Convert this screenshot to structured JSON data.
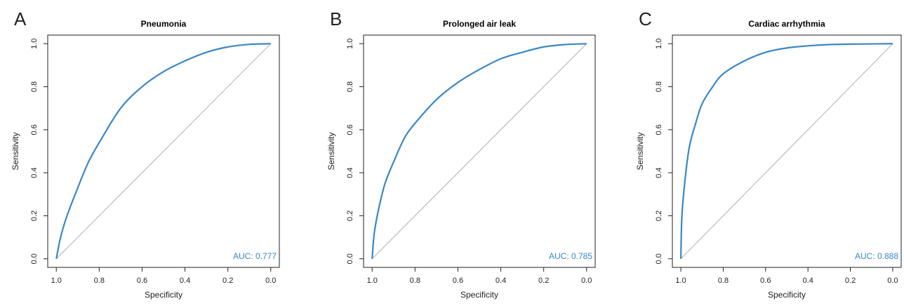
{
  "colors": {
    "curve": "#3a87c6",
    "diagonal": "#b0b0b0",
    "axis": "#222222",
    "auc_text": "#3a87c6"
  },
  "chart_data": [
    {
      "type": "line",
      "panel_label": "A",
      "title": "Pneumonia",
      "xlabel": "Specificity",
      "ylabel": "Sensitivity",
      "xlim": [
        1.0,
        0.0
      ],
      "ylim": [
        0.0,
        1.0
      ],
      "x_reversed": true,
      "x_ticks": [
        "1.0",
        "0.8",
        "0.6",
        "0.4",
        "0.2",
        "0.0"
      ],
      "y_ticks": [
        "0.0",
        "0.2",
        "0.4",
        "0.6",
        "0.8",
        "1.0"
      ],
      "auc_label": "AUC: 0.777",
      "series": [
        {
          "specificity": [
            1.0,
            0.98,
            0.95,
            0.9,
            0.85,
            0.8,
            0.7,
            0.6,
            0.5,
            0.4,
            0.3,
            0.2,
            0.1,
            0.0
          ],
          "sensitivity": [
            0.0,
            0.1,
            0.2,
            0.33,
            0.45,
            0.54,
            0.7,
            0.8,
            0.87,
            0.92,
            0.96,
            0.985,
            0.997,
            1.0
          ]
        }
      ],
      "reference_line": [
        [
          1.0,
          0.0
        ],
        [
          0.0,
          1.0
        ]
      ]
    },
    {
      "type": "line",
      "panel_label": "B",
      "title": "Prolonged air leak",
      "xlabel": "Specificity",
      "ylabel": "Sensitivity",
      "xlim": [
        1.0,
        0.0
      ],
      "ylim": [
        0.0,
        1.0
      ],
      "x_reversed": true,
      "x_ticks": [
        "1.0",
        "0.8",
        "0.6",
        "0.4",
        "0.2",
        "0.0"
      ],
      "y_ticks": [
        "0.0",
        "0.2",
        "0.4",
        "0.6",
        "0.8",
        "1.0"
      ],
      "auc_label": "AUC: 0.785",
      "series": [
        {
          "specificity": [
            1.0,
            0.99,
            0.97,
            0.94,
            0.9,
            0.85,
            0.8,
            0.7,
            0.6,
            0.5,
            0.4,
            0.3,
            0.2,
            0.1,
            0.0
          ],
          "sensitivity": [
            0.0,
            0.12,
            0.23,
            0.35,
            0.45,
            0.56,
            0.63,
            0.74,
            0.82,
            0.88,
            0.93,
            0.96,
            0.985,
            0.996,
            1.0
          ]
        }
      ],
      "reference_line": [
        [
          1.0,
          0.0
        ],
        [
          0.0,
          1.0
        ]
      ]
    },
    {
      "type": "line",
      "panel_label": "C",
      "title": "Cardiac arrhythmia",
      "xlabel": "Specificity",
      "ylabel": "Sensitivity",
      "xlim": [
        1.0,
        0.0
      ],
      "ylim": [
        0.0,
        1.0
      ],
      "x_reversed": true,
      "x_ticks": [
        "1.0",
        "0.8",
        "0.6",
        "0.4",
        "0.2",
        "0.0"
      ],
      "y_ticks": [
        "0.0",
        "0.2",
        "0.4",
        "0.6",
        "0.8",
        "1.0"
      ],
      "auc_label": "AUC: 0.888",
      "series": [
        {
          "specificity": [
            1.0,
            0.995,
            0.98,
            0.96,
            0.93,
            0.9,
            0.85,
            0.8,
            0.7,
            0.6,
            0.5,
            0.4,
            0.3,
            0.2,
            0.1,
            0.0
          ],
          "sensitivity": [
            0.0,
            0.2,
            0.37,
            0.52,
            0.63,
            0.72,
            0.8,
            0.86,
            0.92,
            0.96,
            0.98,
            0.99,
            0.996,
            0.998,
            0.999,
            1.0
          ]
        }
      ],
      "reference_line": [
        [
          1.0,
          0.0
        ],
        [
          0.0,
          1.0
        ]
      ]
    }
  ]
}
